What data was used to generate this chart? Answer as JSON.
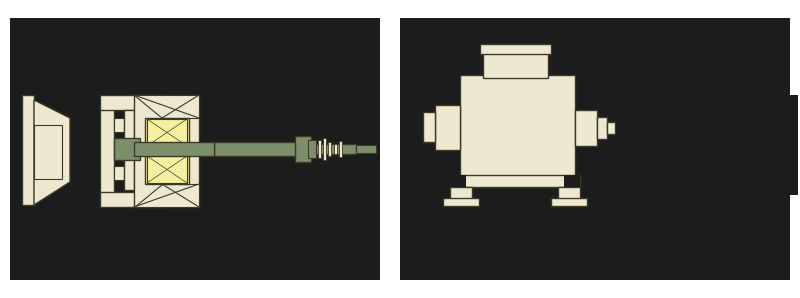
{
  "bg": "#1c1c1c",
  "cream": "#eee8d0",
  "green": "#7d8f6a",
  "yellow": "#f5f0a0",
  "lc": "#3a3a2a",
  "white_bg": "#ffffff"
}
